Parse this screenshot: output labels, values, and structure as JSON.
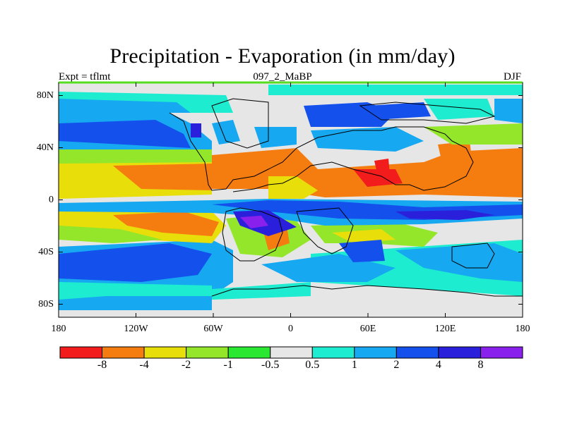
{
  "title": "Precipitation - Evaporation (in mm/day)",
  "subtitle_left": "Expt = tflmt",
  "subtitle_center": "097_2_MaBP",
  "subtitle_right": "DJF",
  "map": {
    "projection": "cylindrical-equidistant",
    "lon_range": [
      -180,
      180
    ],
    "lat_range": [
      -90,
      90
    ],
    "lat_ticks": [
      {
        "value": 80,
        "label": "80N"
      },
      {
        "value": 40,
        "label": "40N"
      },
      {
        "value": 0,
        "label": "0"
      },
      {
        "value": -40,
        "label": "40S"
      },
      {
        "value": -80,
        "label": "80S"
      }
    ],
    "lon_ticks": [
      {
        "value": -180,
        "label": "180"
      },
      {
        "value": -120,
        "label": "120W"
      },
      {
        "value": -60,
        "label": "60W"
      },
      {
        "value": 0,
        "label": "0"
      },
      {
        "value": 60,
        "label": "60E"
      },
      {
        "value": 120,
        "label": "120E"
      },
      {
        "value": 180,
        "label": "180"
      }
    ],
    "frame_color": "#55dd22"
  },
  "colorbar": {
    "colors": [
      "#f21c1c",
      "#f57d10",
      "#e8de0a",
      "#93e62a",
      "#2ae832",
      "#e6e6e6",
      "#1eecd0",
      "#16a8f0",
      "#1450ec",
      "#2a20dc",
      "#8a20ec"
    ],
    "labels": [
      "-8",
      "-4",
      "-2",
      "-1",
      "-0.5",
      "0.5",
      "1",
      "2",
      "4",
      "8"
    ]
  },
  "colors": {
    "land_gray": "#e6e6e6",
    "coast": "#000000"
  }
}
